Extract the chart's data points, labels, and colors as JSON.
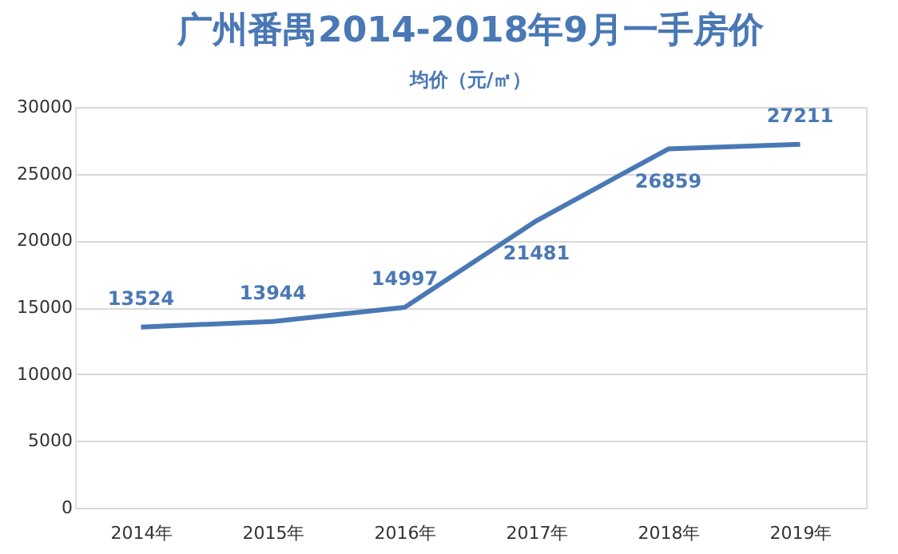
{
  "chart_data": {
    "type": "line",
    "title": "广州番禺2014-2018年9月一手房价",
    "subtitle": "均价（元/㎡）",
    "categories": [
      "2014年",
      "2015年",
      "2016年",
      "2017年",
      "2018年",
      "2019年"
    ],
    "series": [
      {
        "color": "#4a78b5",
        "values": [
          13524,
          13944,
          14997,
          21481,
          26859,
          27211
        ]
      }
    ],
    "ylim": [
      0,
      30000
    ],
    "yticks": [
      0,
      5000,
      10000,
      15000,
      20000,
      25000,
      30000
    ],
    "grid": "y",
    "data_labels": true,
    "legend": false,
    "marker": "none",
    "line_style": "solid"
  }
}
